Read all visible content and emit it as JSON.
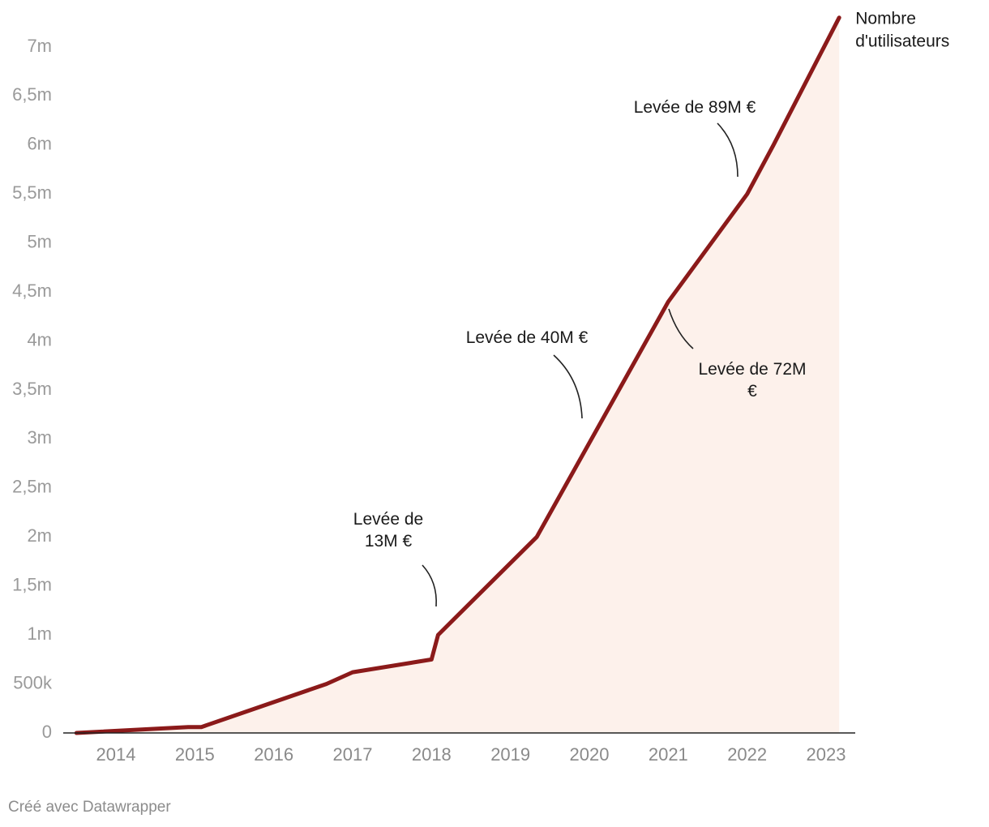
{
  "chart_data": {
    "type": "area",
    "title": "",
    "xlabel": "",
    "ylabel": "",
    "ylim": [
      0,
      7000000
    ],
    "xlim": [
      "2013-07-01",
      "2023-03-01"
    ],
    "grid": false,
    "y_ticks": [
      {
        "value": 0,
        "label": "0"
      },
      {
        "value": 500000,
        "label": "500k"
      },
      {
        "value": 1000000,
        "label": "1m"
      },
      {
        "value": 1500000,
        "label": "1,5m"
      },
      {
        "value": 2000000,
        "label": "2m"
      },
      {
        "value": 2500000,
        "label": "2,5m"
      },
      {
        "value": 3000000,
        "label": "3m"
      },
      {
        "value": 3500000,
        "label": "3,5m"
      },
      {
        "value": 4000000,
        "label": "4m"
      },
      {
        "value": 4500000,
        "label": "4,5m"
      },
      {
        "value": 5000000,
        "label": "5m"
      },
      {
        "value": 5500000,
        "label": "5,5m"
      },
      {
        "value": 6000000,
        "label": "6m"
      },
      {
        "value": 6500000,
        "label": "6,5m"
      },
      {
        "value": 7000000,
        "label": "7m"
      }
    ],
    "x_ticks": [
      {
        "date": "2014-01-01",
        "label": "2014"
      },
      {
        "date": "2015-01-01",
        "label": "2015"
      },
      {
        "date": "2016-01-01",
        "label": "2016"
      },
      {
        "date": "2017-01-01",
        "label": "2017"
      },
      {
        "date": "2018-01-01",
        "label": "2018"
      },
      {
        "date": "2019-01-01",
        "label": "2019"
      },
      {
        "date": "2020-01-01",
        "label": "2020"
      },
      {
        "date": "2021-01-01",
        "label": "2021"
      },
      {
        "date": "2022-01-01",
        "label": "2022"
      },
      {
        "date": "2023-01-01",
        "label": "2023"
      }
    ],
    "series": [
      {
        "name": "Nombre d'utilisateurs",
        "color": "#8b1a1a",
        "fill": "#fdf1eb",
        "points": [
          {
            "x": "2013-07-01",
            "y": 0
          },
          {
            "x": "2014-12-01",
            "y": 60000
          },
          {
            "x": "2015-02-01",
            "y": 60000
          },
          {
            "x": "2016-09-01",
            "y": 500000
          },
          {
            "x": "2017-01-01",
            "y": 620000
          },
          {
            "x": "2018-01-01",
            "y": 750000
          },
          {
            "x": "2018-02-01",
            "y": 1000000
          },
          {
            "x": "2019-05-01",
            "y": 2000000
          },
          {
            "x": "2021-01-01",
            "y": 4400000
          },
          {
            "x": "2022-01-01",
            "y": 5500000
          },
          {
            "x": "2022-05-01",
            "y": 6000000
          },
          {
            "x": "2023-03-01",
            "y": 7300000
          }
        ]
      }
    ],
    "annotations": [
      {
        "lines": [
          "Levée de",
          "13M €"
        ],
        "anchor_date": "2018-01-01",
        "anchor_y": 1300000
      },
      {
        "lines": [
          "Levée de 40M €"
        ],
        "anchor_date": "2019-12-15",
        "anchor_y": 3200000
      },
      {
        "lines": [
          "Levée de 72M",
          "€"
        ],
        "anchor_date": "2021-01-01",
        "anchor_y": 4350000
      },
      {
        "lines": [
          "Levée de 89M €"
        ],
        "anchor_date": "2021-12-15",
        "anchor_y": 5700000
      }
    ]
  },
  "credit": "Créé avec Datawrapper"
}
